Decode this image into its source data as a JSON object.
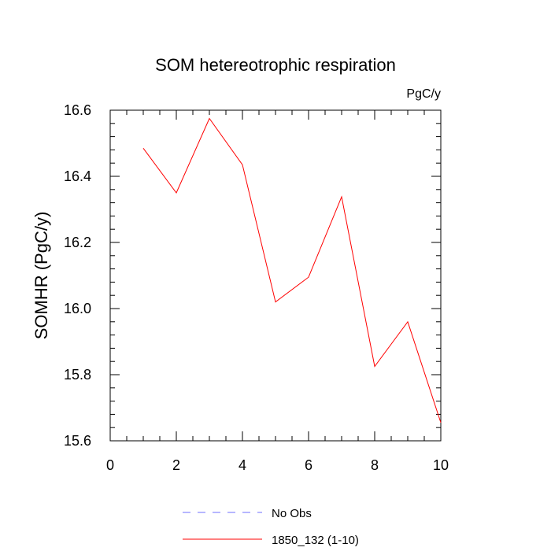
{
  "chart_data": {
    "type": "line",
    "title": "SOM hetereotrophic respiration",
    "units_label": "PgC/y",
    "xlabel": "",
    "ylabel": "SOMHR  (PgC/y)",
    "xlim": [
      0,
      10
    ],
    "ylim": [
      15.6,
      16.6
    ],
    "x_ticks": [
      0,
      2,
      4,
      6,
      8,
      10
    ],
    "x_tick_labels": [
      "0",
      "2",
      "4",
      "6",
      "8",
      "10"
    ],
    "y_ticks": [
      15.6,
      15.8,
      16.0,
      16.2,
      16.4,
      16.6
    ],
    "y_tick_labels": [
      "15.6",
      "15.8",
      "16.0",
      "16.2",
      "16.4",
      "16.6"
    ],
    "grid": false,
    "legend_position": "bottom-center",
    "series": [
      {
        "name": "1850_132 (1-10)",
        "color": "#ff0000",
        "style": "solid",
        "x": [
          1,
          2,
          3,
          4,
          5,
          6,
          7,
          8,
          9,
          10
        ],
        "y": [
          16.485,
          16.35,
          16.575,
          16.435,
          16.02,
          16.095,
          16.338,
          15.825,
          15.96,
          15.655
        ]
      }
    ],
    "legend": [
      {
        "label": "No Obs",
        "color": "#6f6fff",
        "style": "dashed"
      },
      {
        "label": "1850_132 (1-10)",
        "color": "#ff0000",
        "style": "solid"
      }
    ]
  }
}
